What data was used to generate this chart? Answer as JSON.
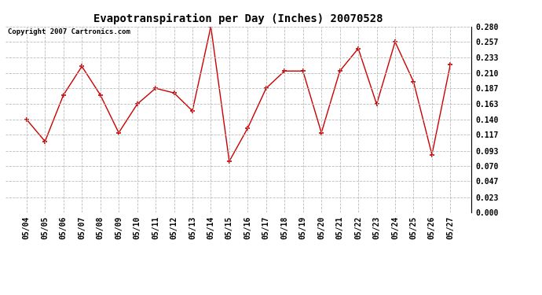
{
  "title": "Evapotranspiration per Day (Inches) 20070528",
  "copyright_text": "Copyright 2007 Cartronics.com",
  "dates": [
    "05/04",
    "05/05",
    "05/06",
    "05/07",
    "05/08",
    "05/09",
    "05/10",
    "05/11",
    "05/12",
    "05/13",
    "05/14",
    "05/15",
    "05/16",
    "05/17",
    "05/18",
    "05/19",
    "05/20",
    "05/21",
    "05/22",
    "05/23",
    "05/24",
    "05/25",
    "05/26",
    "05/27"
  ],
  "values": [
    0.14,
    0.107,
    0.177,
    0.22,
    0.177,
    0.12,
    0.163,
    0.187,
    0.18,
    0.153,
    0.28,
    0.077,
    0.127,
    0.187,
    0.213,
    0.213,
    0.12,
    0.213,
    0.247,
    0.163,
    0.257,
    0.197,
    0.087,
    0.223
  ],
  "line_color": "#cc0000",
  "marker": "+",
  "marker_size": 4,
  "marker_edge_width": 1.2,
  "line_width": 1.0,
  "background_color": "#ffffff",
  "grid_color": "#bbbbbb",
  "ylim": [
    0.0,
    0.28
  ],
  "yticks": [
    0.0,
    0.023,
    0.047,
    0.07,
    0.093,
    0.117,
    0.14,
    0.163,
    0.187,
    0.21,
    0.233,
    0.257,
    0.28
  ],
  "title_fontsize": 10,
  "tick_fontsize": 7,
  "copyright_fontsize": 6.5,
  "fig_width": 6.9,
  "fig_height": 3.75,
  "dpi": 100
}
